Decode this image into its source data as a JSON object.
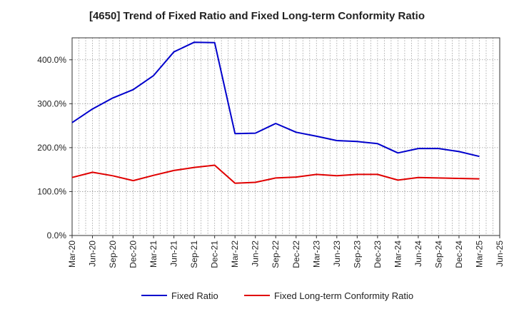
{
  "chart_data": {
    "type": "line",
    "title": "[4650]  Trend of Fixed Ratio and Fixed Long-term Conformity Ratio",
    "xlabel": "",
    "ylabel": "",
    "x_ticks": [
      "Mar-20",
      "Jun-20",
      "Sep-20",
      "Dec-20",
      "Mar-21",
      "Jun-21",
      "Sep-21",
      "Dec-21",
      "Mar-22",
      "Jun-22",
      "Sep-22",
      "Dec-22",
      "Mar-23",
      "Jun-23",
      "Sep-23",
      "Dec-23",
      "Mar-24",
      "Jun-24",
      "Sep-24",
      "Dec-24",
      "Mar-25",
      "Jun-25"
    ],
    "y_ticks": [
      {
        "value": 0,
        "label": "0.0%"
      },
      {
        "value": 100,
        "label": "100.0%"
      },
      {
        "value": 200,
        "label": "200.0%"
      },
      {
        "value": 300,
        "label": "300.0%"
      },
      {
        "value": 400,
        "label": "400.0%"
      }
    ],
    "ylim": [
      0,
      450
    ],
    "grid": true,
    "legend_position": "bottom",
    "categories": [
      "Mar-20",
      "Jun-20",
      "Sep-20",
      "Dec-20",
      "Mar-21",
      "Jun-21",
      "Sep-21",
      "Dec-21",
      "Mar-22",
      "Jun-22",
      "Sep-22",
      "Dec-22",
      "Mar-23",
      "Jun-23",
      "Sep-23",
      "Dec-23",
      "Mar-24",
      "Jun-24",
      "Sep-24",
      "Dec-24",
      "Mar-25"
    ],
    "series": [
      {
        "name": "Fixed Ratio",
        "color": "#0000cc",
        "values": [
          257,
          288,
          313,
          332,
          364,
          418,
          440,
          439,
          232,
          233,
          255,
          235,
          226,
          216,
          214,
          209,
          188,
          198,
          198,
          191,
          180
        ]
      },
      {
        "name": "Fixed Long-term Conformity Ratio",
        "color": "#e00000",
        "values": [
          132,
          144,
          136,
          125,
          137,
          148,
          155,
          160,
          119,
          121,
          131,
          133,
          139,
          136,
          139,
          139,
          126,
          132,
          131,
          130,
          129
        ]
      }
    ]
  }
}
